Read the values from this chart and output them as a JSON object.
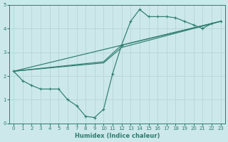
{
  "xlabel": "Humidex (Indice chaleur)",
  "xlim": [
    -0.5,
    23.5
  ],
  "ylim": [
    0,
    5
  ],
  "xticks": [
    0,
    1,
    2,
    3,
    4,
    5,
    6,
    7,
    8,
    9,
    10,
    11,
    12,
    13,
    14,
    15,
    16,
    17,
    18,
    19,
    20,
    21,
    22,
    23
  ],
  "yticks": [
    0,
    1,
    2,
    3,
    4,
    5
  ],
  "bg_color": "#cce8ea",
  "line_color": "#2e7d6e",
  "grid_color": "#b8d8da",
  "main_line": {
    "x": [
      0,
      1,
      2,
      3,
      4,
      5,
      6,
      7,
      8,
      9,
      10,
      11,
      12,
      13,
      14,
      15,
      16,
      17,
      18,
      19,
      20,
      21,
      22,
      23
    ],
    "y": [
      2.2,
      1.8,
      1.6,
      1.45,
      1.45,
      1.45,
      1.0,
      0.75,
      0.3,
      0.25,
      0.6,
      2.1,
      3.3,
      4.3,
      4.8,
      4.5,
      4.5,
      4.5,
      4.45,
      4.3,
      4.15,
      4.0,
      4.2,
      4.3
    ]
  },
  "trend1": {
    "x": [
      0,
      23
    ],
    "y": [
      2.2,
      4.3
    ]
  },
  "trend2": {
    "x": [
      0,
      10,
      12,
      23
    ],
    "y": [
      2.2,
      2.6,
      3.3,
      4.3
    ]
  },
  "trend3": {
    "x": [
      0,
      10,
      12,
      23
    ],
    "y": [
      2.2,
      2.55,
      3.2,
      4.3
    ]
  }
}
